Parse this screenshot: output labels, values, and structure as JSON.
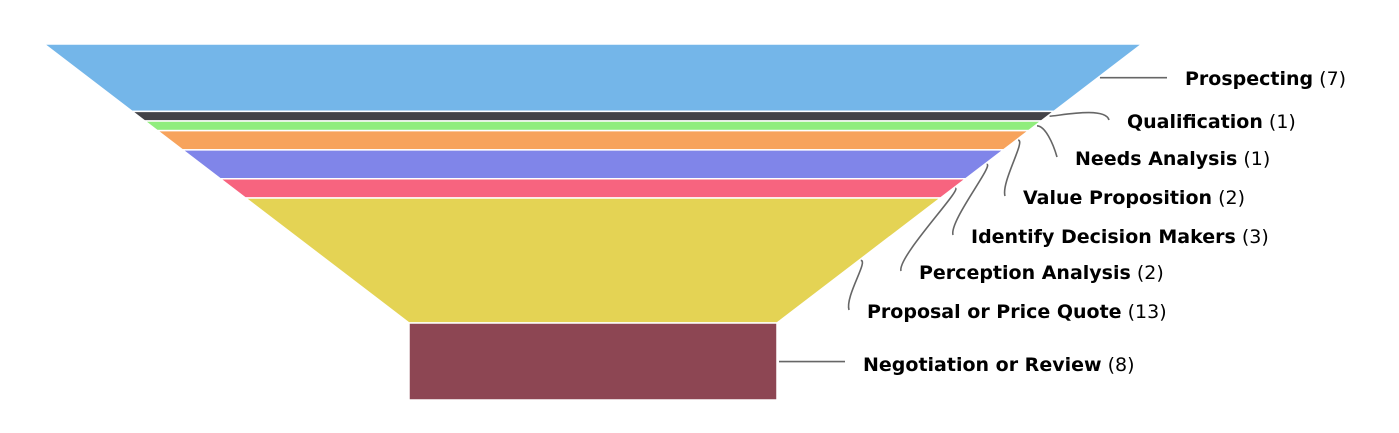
{
  "chart_data": {
    "type": "funnel",
    "title": "",
    "stages": [
      {
        "name": "Prospecting",
        "value": 7,
        "color": "#74b6e9"
      },
      {
        "name": "Qualification",
        "value": 1,
        "color": "#434348"
      },
      {
        "name": "Needs Analysis",
        "value": 1,
        "color": "#90ed7d"
      },
      {
        "name": "Value Proposition",
        "value": 2,
        "color": "#f7a35c"
      },
      {
        "name": "Identify Decision Makers",
        "value": 3,
        "color": "#8085e9"
      },
      {
        "name": "Perception Analysis",
        "value": 2,
        "color": "#f7647f"
      },
      {
        "name": "Proposal or Price Quote",
        "value": 13,
        "color": "#e4d354"
      },
      {
        "name": "Negotiation or Review",
        "value": 8,
        "color": "#8d4653"
      }
    ]
  }
}
